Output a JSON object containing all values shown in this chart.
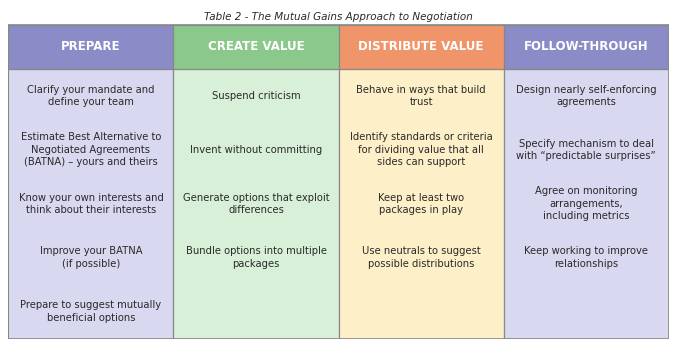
{
  "title": "Table 2 - The Mutual Gains Approach to Negotiation",
  "columns": [
    "PREPARE",
    "CREATE VALUE",
    "DISTRIBUTE VALUE",
    "FOLLOW-THROUGH"
  ],
  "header_colors": [
    "#8b8bc8",
    "#8bc88b",
    "#f0956a",
    "#8b8bc8"
  ],
  "body_bg_colors": [
    "#d8d8f0",
    "#d8f0d8",
    "#fdf0c8",
    "#d8d8f0"
  ],
  "col_content": [
    [
      "Clarify your mandate and\ndefine your team",
      "Estimate Best Alternative to\nNegotiated Agreements\n(BATNA) – yours and theirs",
      "Know your own interests and\nthink about their interests",
      "Improve your BATNA\n(if possible)",
      "Prepare to suggest mutually\nbeneficial options"
    ],
    [
      "Suspend criticism",
      "Invent without committing",
      "Generate options that exploit\ndifferences",
      "Bundle options into multiple\npackages",
      ""
    ],
    [
      "Behave in ways that build\ntrust",
      "Identify standards or criteria\nfor dividing value that all\nsides can support",
      "Keep at least two\npackages in play",
      "Use neutrals to suggest\npossible distributions",
      ""
    ],
    [
      "Design nearly self-enforcing\nagreements",
      "Specify mechanism to deal\nwith “predictable surprises”",
      "Agree on monitoring\narrangements,\nincluding metrics",
      "Keep working to improve\nrelationships",
      ""
    ]
  ],
  "text_color": "#2a2a2a",
  "border_color": "#888888",
  "title_fontsize": 7.5,
  "header_fontsize": 8.5,
  "cell_fontsize": 7.2,
  "fig_width": 6.75,
  "fig_height": 3.4
}
